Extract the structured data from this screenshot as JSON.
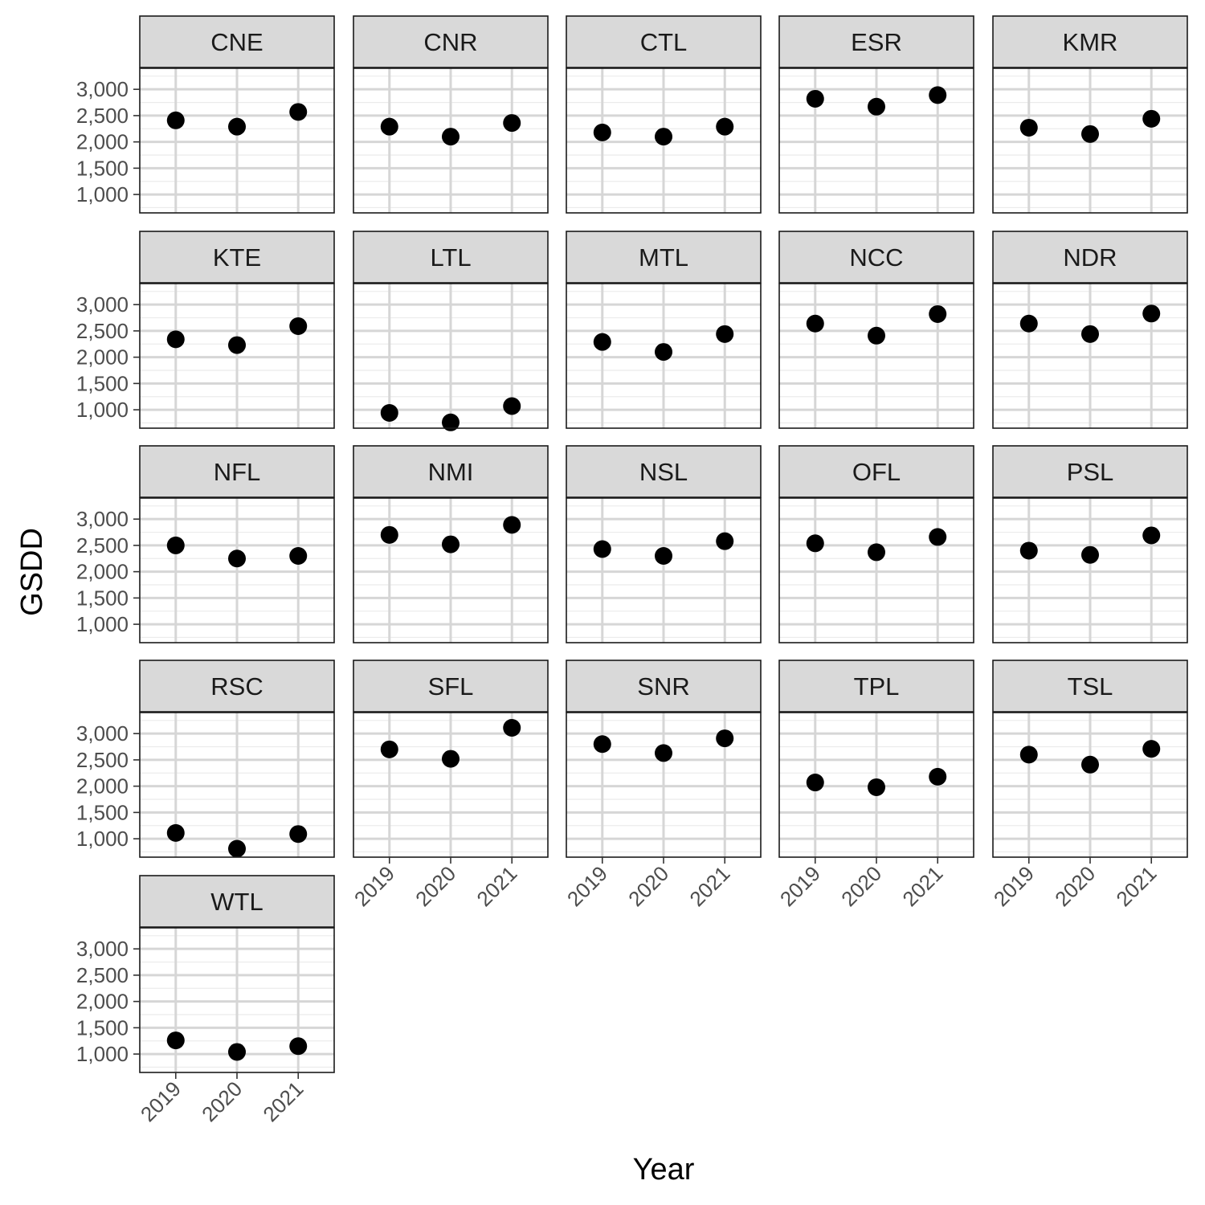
{
  "chart_data": {
    "type": "scatter",
    "layout": "facet-wrap",
    "xlabel": "Year",
    "ylabel": "GSDD",
    "x": [
      "2019",
      "2020",
      "2021"
    ],
    "y_ticks": [
      1000,
      1500,
      2000,
      2500,
      3000
    ],
    "y_tick_labels": [
      "1,000",
      "1,500",
      "2,000",
      "2,500",
      "3,000"
    ],
    "ylim": [
      650,
      3400
    ],
    "grid": true,
    "point_color": "#000000",
    "strip_fill": "#d9d9d9",
    "panels": [
      {
        "label": "CNE",
        "values": [
          2410,
          2290,
          2570
        ]
      },
      {
        "label": "CNR",
        "values": [
          2290,
          2100,
          2360
        ]
      },
      {
        "label": "CTL",
        "values": [
          2180,
          2100,
          2290
        ]
      },
      {
        "label": "ESR",
        "values": [
          2820,
          2670,
          2890
        ]
      },
      {
        "label": "KMR",
        "values": [
          2270,
          2150,
          2440
        ]
      },
      {
        "label": "KTE",
        "values": [
          2340,
          2230,
          2590
        ]
      },
      {
        "label": "LTL",
        "values": [
          940,
          760,
          1070
        ]
      },
      {
        "label": "MTL",
        "values": [
          2290,
          2100,
          2440
        ]
      },
      {
        "label": "NCC",
        "values": [
          2640,
          2410,
          2820
        ]
      },
      {
        "label": "NDR",
        "values": [
          2640,
          2440,
          2830
        ]
      },
      {
        "label": "NFL",
        "values": [
          2500,
          2250,
          2300
        ]
      },
      {
        "label": "NMI",
        "values": [
          2700,
          2520,
          2890
        ]
      },
      {
        "label": "NSL",
        "values": [
          2430,
          2300,
          2580
        ]
      },
      {
        "label": "OFL",
        "values": [
          2540,
          2370,
          2660
        ]
      },
      {
        "label": "PSL",
        "values": [
          2400,
          2320,
          2690
        ]
      },
      {
        "label": "RSC",
        "values": [
          1110,
          810,
          1090
        ]
      },
      {
        "label": "SFL",
        "values": [
          2700,
          2520,
          3110
        ]
      },
      {
        "label": "SNR",
        "values": [
          2800,
          2630,
          2910
        ]
      },
      {
        "label": "TPL",
        "values": [
          2070,
          1980,
          2180
        ]
      },
      {
        "label": "TSL",
        "values": [
          2600,
          2410,
          2710
        ]
      },
      {
        "label": "WTL",
        "values": [
          1260,
          1040,
          1150
        ]
      }
    ]
  }
}
